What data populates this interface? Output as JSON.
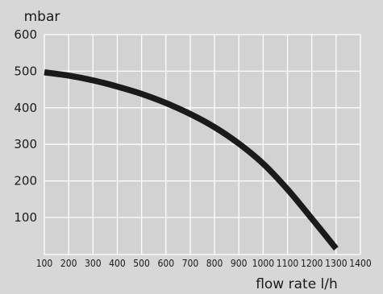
{
  "chart_data": {
    "type": "line",
    "ylabel": "mbar",
    "xlabel": "flow rate l/h",
    "xlim": [
      100,
      1400
    ],
    "ylim": [
      0,
      600
    ],
    "x_ticks": [
      "100",
      "200",
      "300",
      "400",
      "500",
      "600",
      "700",
      "800",
      "900",
      "1000",
      "1100",
      "1200",
      "1300",
      "1400"
    ],
    "y_ticks": [
      "100",
      "200",
      "300",
      "400",
      "500",
      "600"
    ],
    "grid": true,
    "series": [
      {
        "x": [
          100,
          200,
          300,
          400,
          500,
          600,
          700,
          800,
          900,
          1000,
          1100,
          1200,
          1300
        ],
        "values": [
          497,
          488,
          475,
          458,
          438,
          413,
          383,
          347,
          302,
          247,
          177,
          97,
          15
        ]
      }
    ],
    "colors": {
      "background": "#d7d7d7",
      "plot_area": "#d2d2d2",
      "grid": "#ffffff",
      "curve": "#1a1a1a"
    }
  }
}
